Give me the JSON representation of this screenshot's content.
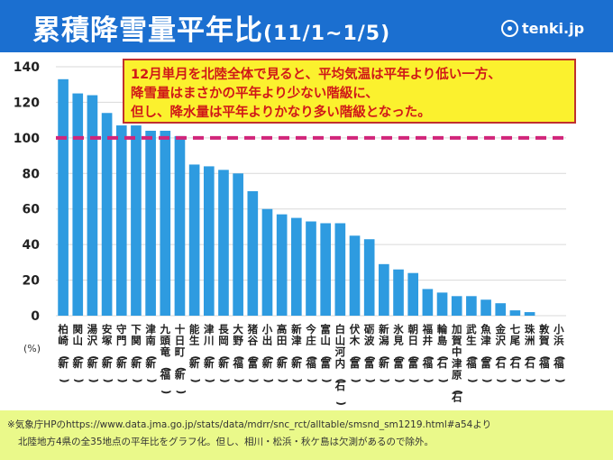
{
  "header": {
    "title": "累積降雪量平年比",
    "title_range": "(11/1~1/5)",
    "logo_text": "tenki.jp",
    "background": "#1b6fd0"
  },
  "annotation": [
    "12月単月を北陸全体で見ると、平均気温は平年より低い一方、",
    "降雪量はまさかの平年より少ない階級に、",
    "但し、降水量は平年よりかなり多い階級となった。"
  ],
  "footnote": [
    "※気象庁HPのhttps://www.data.jma.go.jp/stats/data/mdrr/snc_rct/alltable/smsnd_sm1219.html#a54より",
    "北陸地方4県の全35地点の平年比をグラフ化。但し、相川・松浜・秋ケ島は欠測があるので除外。"
  ],
  "chart_data": {
    "type": "bar",
    "ylabel": "(%)",
    "ylim": [
      0,
      140
    ],
    "yticks": [
      0,
      20,
      40,
      60,
      80,
      100,
      120,
      140
    ],
    "reference_line": 100,
    "bar_color": "#2e9be0",
    "reference_color": "#d1257a",
    "categories": [
      "柏崎(新)",
      "関山(新)",
      "湯沢(新)",
      "安塚(新)",
      "守門(新)",
      "下関(新)",
      "津南(新)",
      "九頭竜(福)",
      "十日町(新)",
      "能生(新)",
      "津川(新)",
      "長岡(新)",
      "大野(福)",
      "猪谷(富)",
      "小出(新)",
      "高田(新)",
      "新津(新)",
      "今庄(福)",
      "富山(富)",
      "白山河内(石)",
      "伏木(富)",
      "砺波(富)",
      "新潟(新)",
      "氷見(富)",
      "朝日(富)",
      "福井(福)",
      "輪島(石)",
      "加賀中津原(石)",
      "武生(福)",
      "魚津(富)",
      "金沢(石)",
      "七尾(石)",
      "珠洲(石)",
      "敦賀(福)",
      "小浜(福)"
    ],
    "values": [
      133,
      125,
      124,
      114,
      107,
      107,
      104,
      104,
      101,
      85,
      84,
      82,
      80,
      70,
      60,
      57,
      55,
      53,
      52,
      52,
      45,
      43,
      29,
      26,
      24,
      15,
      13,
      11,
      11,
      9,
      7,
      3,
      2,
      0,
      0
    ]
  }
}
